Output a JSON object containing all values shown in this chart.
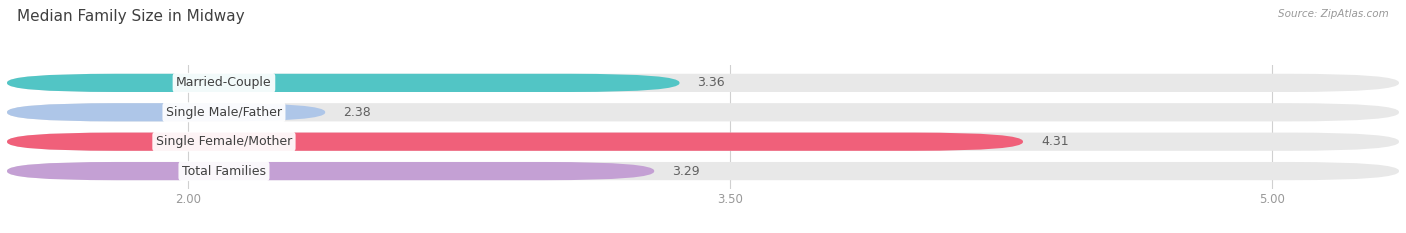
{
  "title": "Median Family Size in Midway",
  "source": "Source: ZipAtlas.com",
  "categories": [
    "Married-Couple",
    "Single Male/Father",
    "Single Female/Mother",
    "Total Families"
  ],
  "values": [
    3.36,
    2.38,
    4.31,
    3.29
  ],
  "bar_colors": [
    "#52c5c5",
    "#aec6e8",
    "#f0607a",
    "#c4a0d4"
  ],
  "bar_bg_color": "#e8e8e8",
  "xmin": 1.5,
  "xmax": 5.35,
  "xticks": [
    2.0,
    3.5,
    5.0
  ],
  "xtick_labels": [
    "2.00",
    "3.50",
    "5.00"
  ],
  "bar_height": 0.62,
  "background_color": "#ffffff",
  "title_fontsize": 11,
  "label_fontsize": 9,
  "value_fontsize": 9,
  "tick_fontsize": 8.5
}
